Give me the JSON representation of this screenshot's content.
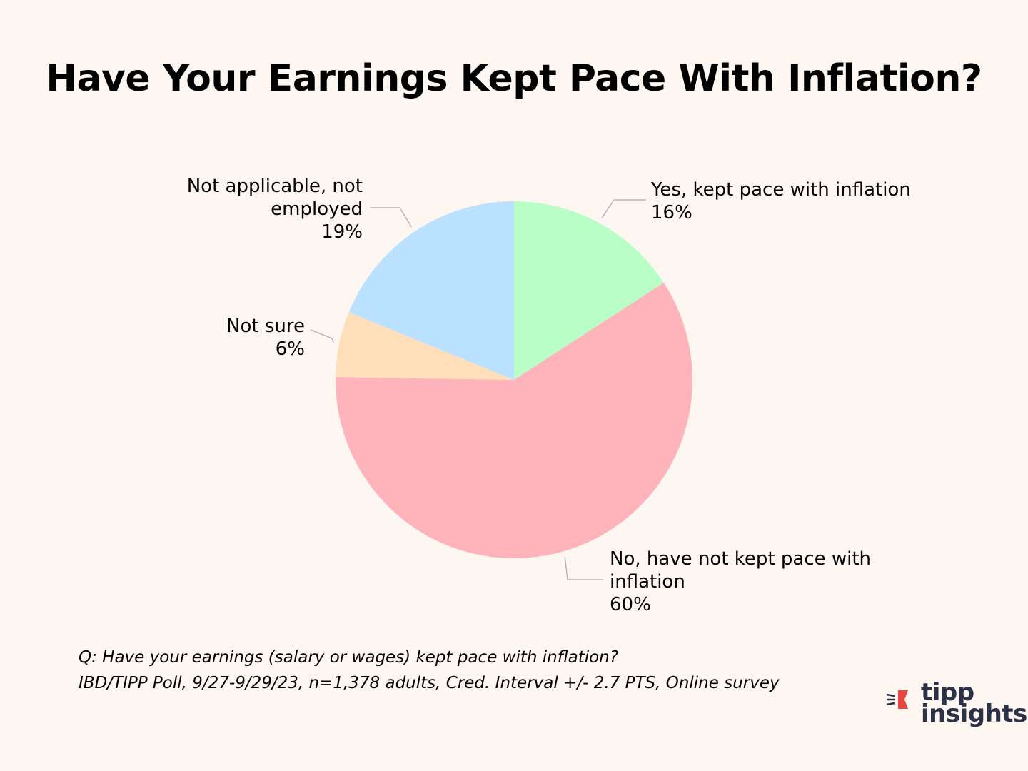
{
  "chart_data": {
    "type": "pie",
    "title": "Have Your Earnings Kept Pace With Inflation?",
    "slices": [
      {
        "label": "Yes, kept pace with inflation",
        "pct_label": "16%",
        "value": 16,
        "color": "#b9fec6"
      },
      {
        "label": "No, have not kept pace with inflation",
        "pct_label": "60%",
        "value": 60,
        "color": "#ffb3ba"
      },
      {
        "label": "Not sure",
        "pct_label": "6%",
        "value": 6,
        "color": "#ffdfba"
      },
      {
        "label": "Not applicable, not employed",
        "pct_label": "19%",
        "value": 19,
        "color": "#bae1ff"
      }
    ],
    "start_angle": "12 o'clock",
    "direction": "clockwise",
    "legend": "none"
  },
  "footnote": {
    "question": "Q: Have your earnings (salary or wages) kept pace with inflation?",
    "source": "IBD/TIPP Poll, 9/27-9/29/23, n=1,378 adults, Cred. Interval +/- 2.7 PTS, Online survey"
  },
  "logo": {
    "line1": "tipp",
    "line2": "insights",
    "icon": "tipp-insights-flag-logo",
    "colors": {
      "flag": "#e8473d",
      "text": "#2b3147"
    }
  }
}
